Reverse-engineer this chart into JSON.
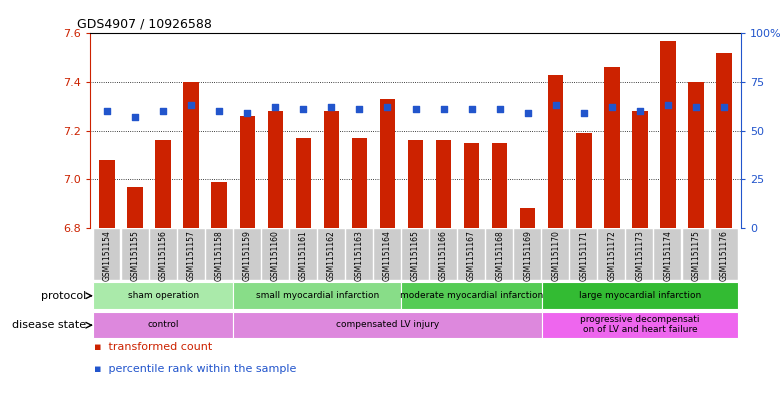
{
  "title": "GDS4907 / 10926588",
  "samples": [
    "GSM1151154",
    "GSM1151155",
    "GSM1151156",
    "GSM1151157",
    "GSM1151158",
    "GSM1151159",
    "GSM1151160",
    "GSM1151161",
    "GSM1151162",
    "GSM1151163",
    "GSM1151164",
    "GSM1151165",
    "GSM1151166",
    "GSM1151167",
    "GSM1151168",
    "GSM1151169",
    "GSM1151170",
    "GSM1151171",
    "GSM1151172",
    "GSM1151173",
    "GSM1151174",
    "GSM1151175",
    "GSM1151176"
  ],
  "transformed_count": [
    7.08,
    6.97,
    7.16,
    7.4,
    6.99,
    7.26,
    7.28,
    7.17,
    7.28,
    7.17,
    7.33,
    7.16,
    7.16,
    7.15,
    7.15,
    6.88,
    7.43,
    7.19,
    7.46,
    7.28,
    7.57,
    7.4,
    7.52
  ],
  "percentile_rank": [
    60,
    57,
    60,
    63,
    60,
    59,
    62,
    61,
    62,
    61,
    62,
    61,
    61,
    61,
    61,
    59,
    63,
    59,
    62,
    60,
    63,
    62,
    62
  ],
  "ylim": [
    6.8,
    7.6
  ],
  "yticks_left": [
    6.8,
    7.0,
    7.2,
    7.4,
    7.6
  ],
  "yticks_right": [
    0,
    25,
    50,
    75,
    100
  ],
  "bar_color": "#cc2200",
  "dot_color": "#2255cc",
  "protocol_groups": [
    {
      "label": "sham operation",
      "start": 0,
      "end": 4,
      "color": "#aaeaaa"
    },
    {
      "label": "small myocardial infarction",
      "start": 5,
      "end": 10,
      "color": "#88dd88"
    },
    {
      "label": "moderate myocardial infarction",
      "start": 11,
      "end": 15,
      "color": "#55cc55"
    },
    {
      "label": "large myocardial infarction",
      "start": 16,
      "end": 22,
      "color": "#33bb33"
    }
  ],
  "disease_groups": [
    {
      "label": "control",
      "start": 0,
      "end": 4,
      "color": "#dd88dd"
    },
    {
      "label": "compensated LV injury",
      "start": 5,
      "end": 15,
      "color": "#dd88dd"
    },
    {
      "label": "progressive decompensati\non of LV and heart failure",
      "start": 16,
      "end": 22,
      "color": "#ee66ee"
    }
  ],
  "legend_transformed": "transformed count",
  "legend_percentile": "percentile rank within the sample"
}
